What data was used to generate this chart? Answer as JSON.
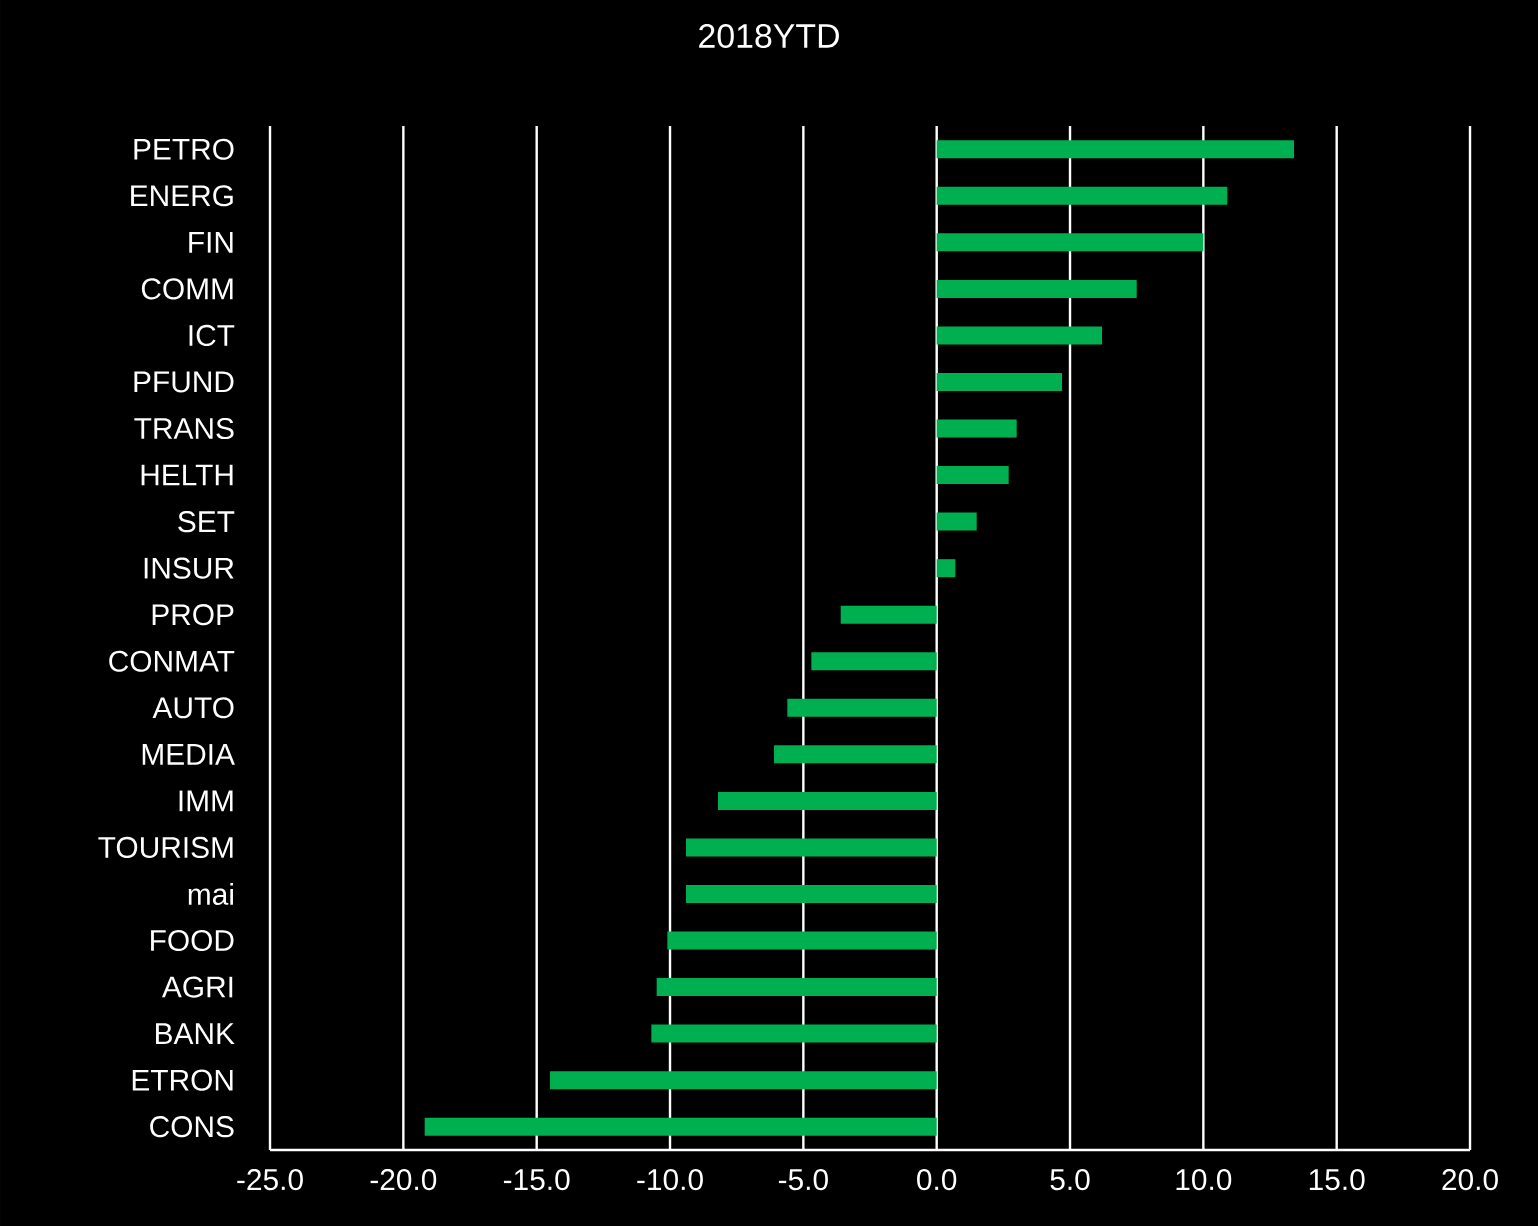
{
  "chart_data": {
    "type": "bar",
    "orientation": "horizontal",
    "title": "2018YTD",
    "categories": [
      "PETRO",
      "ENERG",
      "FIN",
      "COMM",
      "ICT",
      "PFUND",
      "TRANS",
      "HELTH",
      "SET",
      "INSUR",
      "PROP",
      "CONMAT",
      "AUTO",
      "MEDIA",
      "IMM",
      "TOURISM",
      "mai",
      "FOOD",
      "AGRI",
      "BANK",
      "ETRON",
      "CONS"
    ],
    "values": [
      13.4,
      10.9,
      10.0,
      7.5,
      6.2,
      4.7,
      3.0,
      2.7,
      1.5,
      0.7,
      -3.6,
      -4.7,
      -5.6,
      -6.1,
      -8.2,
      -9.4,
      -9.4,
      -10.1,
      -10.5,
      -10.7,
      -14.5,
      -19.2
    ],
    "color": "#00b050",
    "xlim": [
      -25,
      20
    ],
    "xticks": [
      {
        "value": -25,
        "label": "-25.0"
      },
      {
        "value": -20,
        "label": "-20.0"
      },
      {
        "value": -15,
        "label": "-15.0"
      },
      {
        "value": -10,
        "label": "-10.0"
      },
      {
        "value": -5,
        "label": "-5.0"
      },
      {
        "value": 0,
        "label": "0.0"
      },
      {
        "value": 5,
        "label": "5.0"
      },
      {
        "value": 10,
        "label": "10.0"
      },
      {
        "value": 15,
        "label": "15.0"
      },
      {
        "value": 20,
        "label": "20.0"
      }
    ],
    "grid": "x"
  }
}
